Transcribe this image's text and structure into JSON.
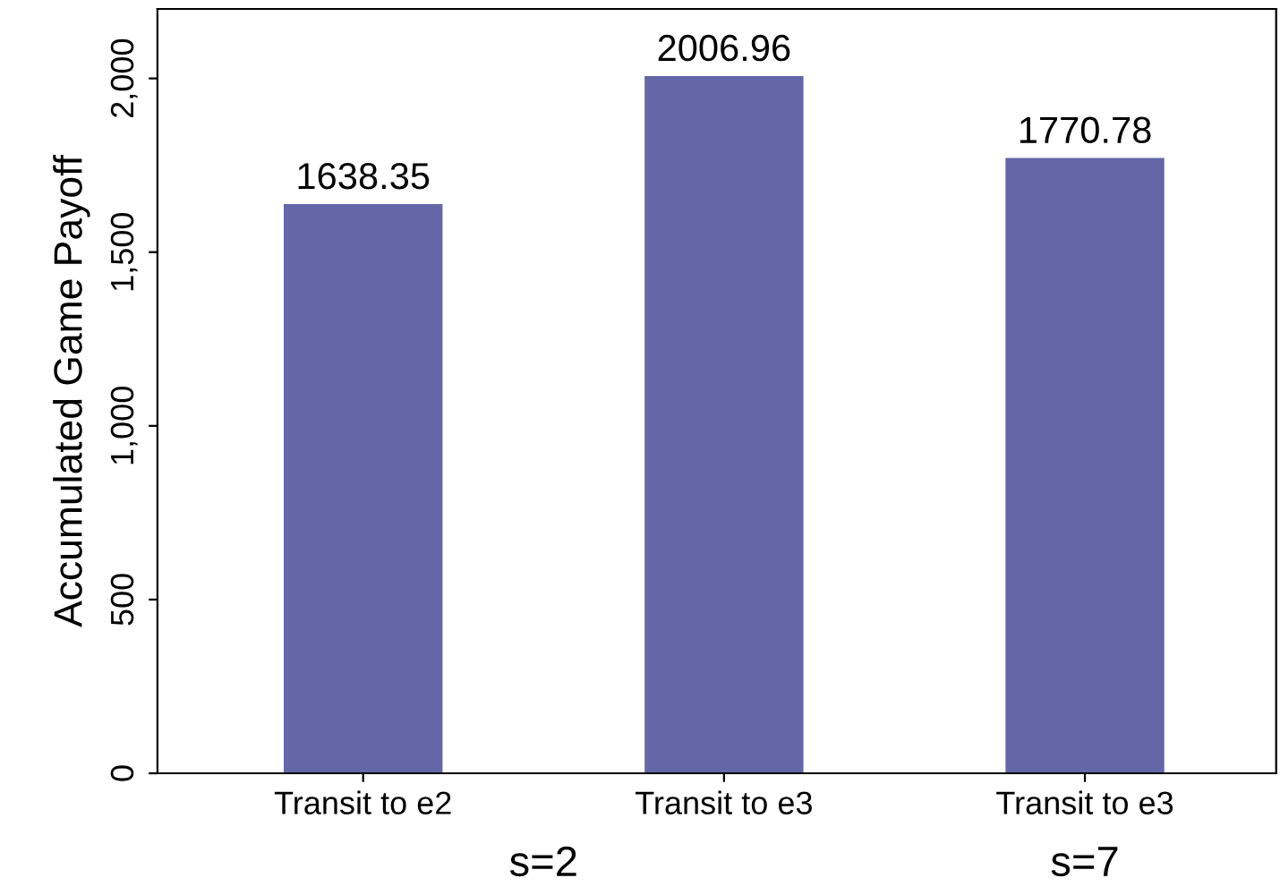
{
  "chart_data": {
    "type": "bar",
    "ylabel": "Accumulated Game Payoff",
    "categories": [
      "Transit to e2",
      "Transit to e3",
      "Transit to e3"
    ],
    "values": [
      1638.35,
      2006.96,
      1770.78
    ],
    "color": "#6367a8",
    "ylim": [
      0,
      2200
    ],
    "yticks": [
      0,
      500,
      {
        "value": 1000,
        "label": "1,000"
      },
      {
        "value": 1500,
        "label": "1,500"
      },
      {
        "value": 2000,
        "label": "2,000"
      }
    ],
    "data_labels": true,
    "grid": false,
    "legend": false,
    "annotations": [
      "s=2",
      "s=7"
    ]
  }
}
